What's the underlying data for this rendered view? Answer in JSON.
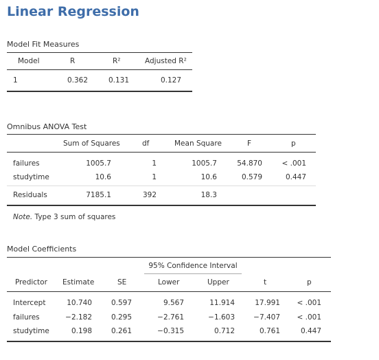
{
  "title": "Linear Regression",
  "fit": {
    "title": "Model Fit Measures",
    "headers": [
      "Model",
      "R",
      "R²",
      "Adjusted R²"
    ],
    "row": [
      "1",
      "0.362",
      "0.131",
      "0.127"
    ]
  },
  "anova": {
    "title": "Omnibus ANOVA Test",
    "headers": [
      "",
      "Sum of Squares",
      "df",
      "Mean Square",
      "F",
      "p"
    ],
    "rows": [
      [
        "failures",
        "1005.7",
        "1",
        "1005.7",
        "54.870",
        "< .001"
      ],
      [
        "studytime",
        "10.6",
        "1",
        "10.6",
        "0.579",
        "0.447"
      ],
      [
        "Residuals",
        "7185.1",
        "392",
        "18.3",
        "",
        ""
      ]
    ],
    "note_label": "Note.",
    "note_text": " Type 3 sum of squares"
  },
  "coef": {
    "title": "Model Coefficients",
    "ci_label": "95% Confidence Interval",
    "headers": [
      "Predictor",
      "Estimate",
      "SE",
      "Lower",
      "Upper",
      "t",
      "p"
    ],
    "rows": [
      [
        "Intercept",
        "10.740",
        "0.597",
        "9.567",
        "11.914",
        "17.991",
        "< .001"
      ],
      [
        "failures",
        "−2.182",
        "0.295",
        "−2.761",
        "−1.603",
        "−7.407",
        "< .001"
      ],
      [
        "studytime",
        "0.198",
        "0.261",
        "−0.315",
        "0.712",
        "0.761",
        "0.447"
      ]
    ]
  }
}
